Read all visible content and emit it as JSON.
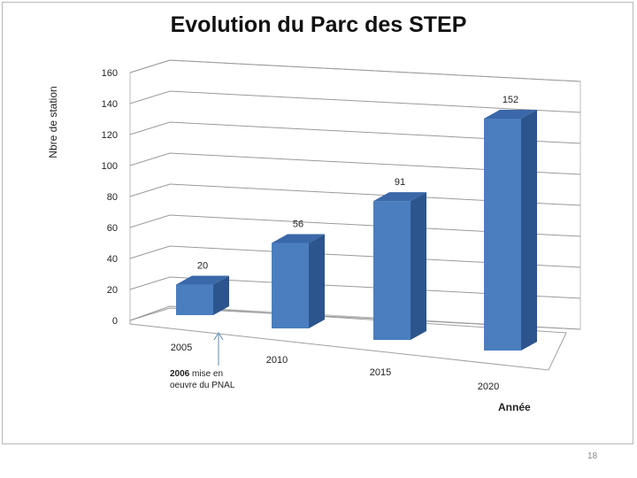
{
  "slide": {
    "page_number": "18",
    "annotation": {
      "year": "2006",
      "line1": "mise en",
      "line2": "oeuvre du PNAL"
    }
  },
  "chart_data": {
    "type": "bar",
    "title": "Evolution du Parc des STEP",
    "xlabel": "Année",
    "ylabel": "Nbre de station",
    "categories": [
      "2005",
      "2010",
      "2015",
      "2020"
    ],
    "values": [
      20,
      56,
      91,
      152
    ],
    "data_labels": [
      "20",
      "56",
      "91",
      "152"
    ],
    "ylim": [
      0,
      160
    ],
    "yticks": [
      0,
      20,
      40,
      60,
      80,
      100,
      120,
      140,
      160
    ],
    "grid": true,
    "three_d": true,
    "bar_color": "#4a7ebf",
    "bar_top_color": "#3a68a8",
    "bar_side_color": "#2d558d"
  }
}
